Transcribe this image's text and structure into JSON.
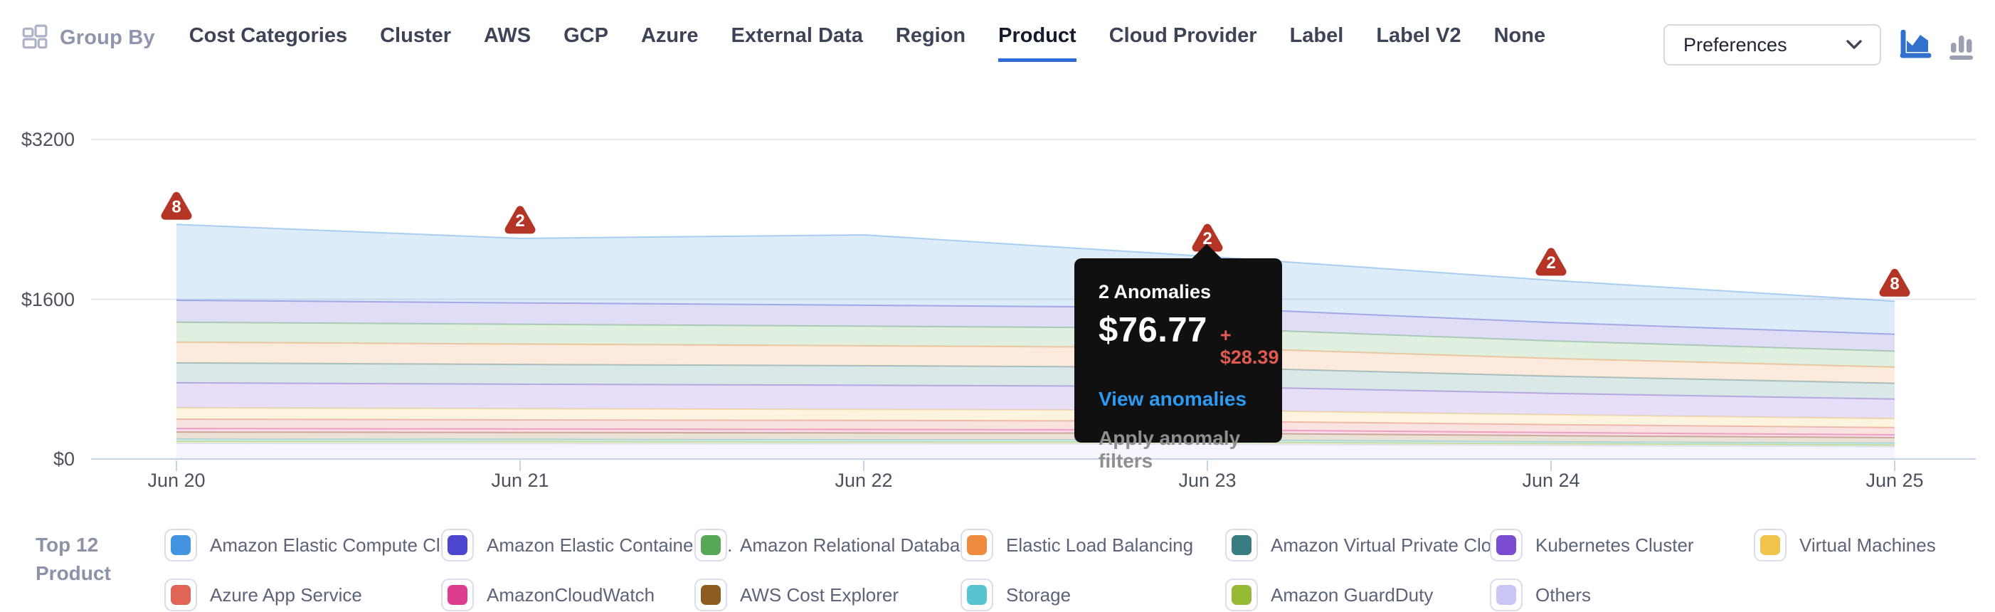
{
  "header": {
    "group_by_label": "Group By",
    "tabs": [
      "Cost Categories",
      "Cluster",
      "AWS",
      "GCP",
      "Azure",
      "External Data",
      "Region",
      "Product",
      "Cloud Provider",
      "Label",
      "Label V2",
      "None"
    ],
    "active_tab": "Product",
    "preferences_label": "Preferences",
    "accent_color": "#2f6cd8"
  },
  "chart_data": {
    "type": "area",
    "stacked": true,
    "x": [
      "Jun 20",
      "Jun 21",
      "Jun 22",
      "Jun 23",
      "Jun 24",
      "Jun 25"
    ],
    "y_ticks": [
      {
        "value": 0,
        "label": "$0"
      },
      {
        "value": 1600,
        "label": "$1600"
      },
      {
        "value": 3200,
        "label": "$3200"
      }
    ],
    "ylim": [
      0,
      3200
    ],
    "grid": true,
    "legend_position": "bottom",
    "series": [
      {
        "name": "Amazon Elastic Compute Cloud",
        "color": "#4394e0",
        "values": [
          760,
          646,
          705,
          515,
          422,
          330
        ]
      },
      {
        "name": "Amazon Elastic Container Service",
        "color": "#4c46cf",
        "values": [
          220,
          215,
          210,
          205,
          185,
          170
        ]
      },
      {
        "name": "Amazon Relational Database Service",
        "color": "#57a757",
        "values": [
          200,
          198,
          196,
          194,
          175,
          160
        ]
      },
      {
        "name": "Elastic Load Balancing",
        "color": "#ee8b3e",
        "values": [
          207,
          204,
          200,
          198,
          178,
          162
        ]
      },
      {
        "name": "Amazon Virtual Private Cloud",
        "color": "#377d82",
        "values": [
          200,
          198,
          196,
          192,
          172,
          158
        ]
      },
      {
        "name": "Kubernetes Cluster",
        "color": "#7b4bd0",
        "values": [
          250,
          245,
          242,
          238,
          215,
          195
        ]
      },
      {
        "name": "Virtual Machines",
        "color": "#efc34c",
        "values": [
          114,
          112,
          110,
          108,
          98,
          90
        ]
      },
      {
        "name": "Azure App Service",
        "color": "#df6657",
        "values": [
          93,
          91,
          90,
          88,
          80,
          73
        ]
      },
      {
        "name": "AmazonCloudWatch",
        "color": "#dd3d8c",
        "values": [
          36,
          35,
          35,
          34,
          31,
          28
        ]
      },
      {
        "name": "AWS Cost Explorer",
        "color": "#8d5c1e",
        "values": [
          71,
          70,
          69,
          68,
          62,
          56
        ]
      },
      {
        "name": "Storage",
        "color": "#57c4cf",
        "values": [
          21,
          21,
          20,
          20,
          18,
          17
        ]
      },
      {
        "name": "Amazon GuardDuty",
        "color": "#97ba35",
        "values": [
          21,
          21,
          20,
          20,
          18,
          17
        ]
      },
      {
        "name": "Others",
        "color": "#c9c6f5",
        "values": [
          157,
          154,
          152,
          150,
          136,
          124
        ]
      }
    ],
    "anomalies": [
      {
        "x": "Jun 20",
        "count": 8
      },
      {
        "x": "Jun 21",
        "count": 2
      },
      {
        "x": "Jun 23",
        "count": 2
      },
      {
        "x": "Jun 24",
        "count": 2
      },
      {
        "x": "Jun 25",
        "count": 8
      }
    ],
    "anomaly_marker_color": "#b43525",
    "tooltip": {
      "anchor_x": "Jun 23",
      "title": "2 Anomalies",
      "value": "$76.77",
      "delta": "+ $28.39",
      "link": "View anomalies",
      "action": "Apply anomaly filters"
    }
  },
  "legend": {
    "title_lines": [
      "Top 12",
      "Product"
    ],
    "items": [
      {
        "label": "Amazon Elastic Compute Cl...",
        "color": "#4394e0"
      },
      {
        "label": "Amazon Elastic Container S...",
        "color": "#4c46cf"
      },
      {
        "label": "Amazon Relational Databas...",
        "color": "#57a757"
      },
      {
        "label": "Elastic Load Balancing",
        "color": "#ee8b3e"
      },
      {
        "label": "Amazon Virtual Private Cloud",
        "color": "#377d82"
      },
      {
        "label": "Kubernetes Cluster",
        "color": "#7b4bd0"
      },
      {
        "label": "Virtual Machines",
        "color": "#efc34c"
      },
      {
        "label": "Azure App Service",
        "color": "#df6657"
      },
      {
        "label": "AmazonCloudWatch",
        "color": "#dd3d8c"
      },
      {
        "label": "AWS Cost Explorer",
        "color": "#8d5c1e"
      },
      {
        "label": "Storage",
        "color": "#57c4cf"
      },
      {
        "label": "Amazon GuardDuty",
        "color": "#97ba35"
      },
      {
        "label": "Others",
        "color": "#c9c6f5"
      }
    ]
  }
}
